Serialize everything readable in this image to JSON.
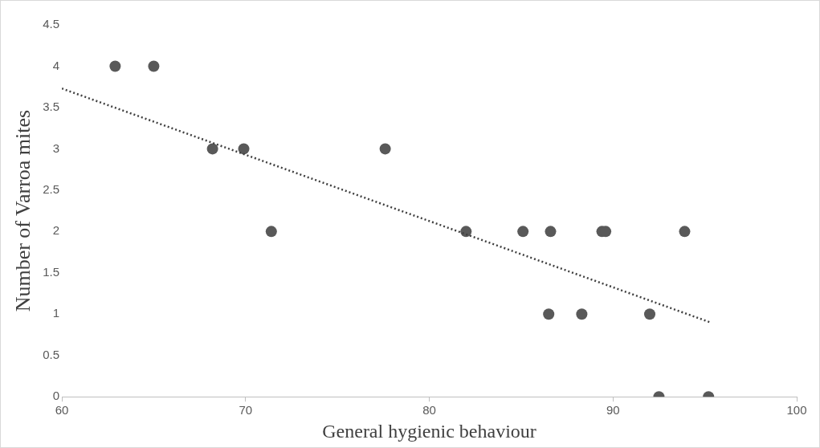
{
  "chart_data": {
    "type": "scatter",
    "xlabel": "General hygienic behaviour",
    "ylabel": "Number of Varroa mites",
    "x": [
      62.9,
      65.0,
      68.2,
      69.9,
      71.4,
      77.6,
      82.0,
      85.1,
      86.6,
      86.5,
      88.3,
      89.4,
      89.6,
      92.0,
      92.5,
      93.9,
      95.2
    ],
    "series": [
      {
        "color": "#595959",
        "marker": "circle",
        "values": [
          4,
          4,
          3,
          3,
          2,
          3,
          2,
          2,
          2,
          1,
          1,
          2,
          2,
          1,
          0,
          2,
          0
        ]
      },
      {
        "type": "line",
        "color": "#404040",
        "line_style": "dotted",
        "marker": "none",
        "x": [
          60,
          95.3
        ],
        "values": [
          3.73,
          0.9
        ]
      }
    ],
    "xlim": [
      60,
      100
    ],
    "xticks": [
      60,
      70,
      80,
      90,
      100
    ],
    "ylim": [
      0,
      4.5
    ],
    "yticks": [
      0,
      0.5,
      1,
      1.5,
      2,
      2.5,
      3,
      3.5,
      4,
      4.5
    ],
    "legend": false
  }
}
